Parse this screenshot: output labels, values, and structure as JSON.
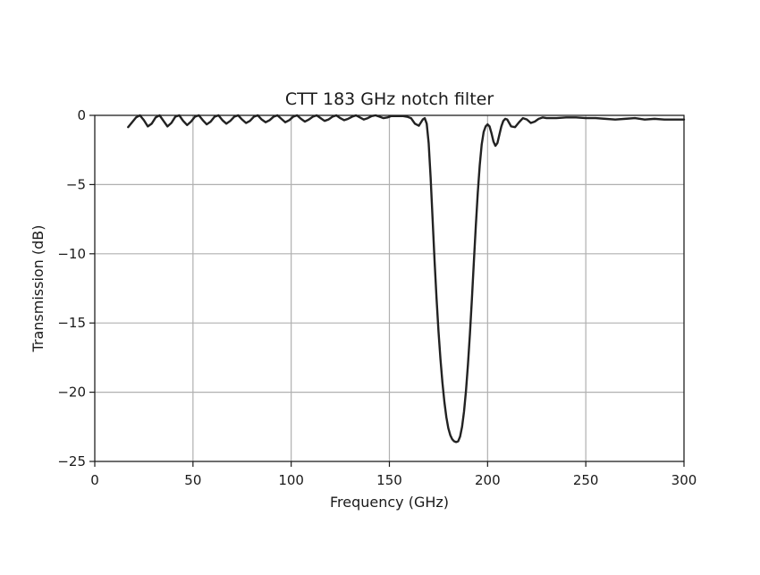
{
  "chart_data": {
    "type": "line",
    "title": "CTT 183 GHz notch filter",
    "xlabel": "Frequency (GHz)",
    "ylabel": "Transmission (dB)",
    "xlim": [
      0,
      300
    ],
    "ylim": [
      -25,
      0
    ],
    "xticks": [
      0,
      50,
      100,
      150,
      200,
      250,
      300
    ],
    "xtick_labels": [
      "0",
      "50",
      "100",
      "150",
      "200",
      "250",
      "300"
    ],
    "yticks": [
      0,
      -5,
      -10,
      -15,
      -20,
      -25
    ],
    "ytick_labels": [
      "0",
      "−5",
      "−10",
      "−15",
      "−20",
      "−25"
    ],
    "grid": true,
    "legend": "none",
    "line_color": "#222222",
    "series": [
      {
        "x": [
          17,
          19,
          21,
          23,
          25,
          27,
          29,
          31,
          33,
          35,
          37,
          39,
          41,
          43,
          45,
          47,
          49,
          51,
          53,
          55,
          57,
          59,
          61,
          63,
          65,
          67,
          69,
          71,
          73,
          75,
          77,
          79,
          81,
          83,
          85,
          87,
          89,
          91,
          93,
          95,
          97,
          99,
          101,
          103,
          105,
          107,
          109,
          111,
          113,
          115,
          117,
          119,
          121,
          123,
          125,
          127,
          129,
          131,
          133,
          135,
          137,
          139,
          141,
          143,
          145,
          147,
          149,
          151,
          153,
          155,
          157,
          159,
          161,
          163,
          165,
          167,
          168,
          169,
          170,
          171,
          172,
          173,
          174,
          175,
          176,
          177,
          178,
          179,
          180,
          181,
          182,
          183,
          184,
          185,
          186,
          187,
          188,
          189,
          190,
          191,
          192,
          193,
          194,
          195,
          196,
          197,
          198,
          199,
          200,
          201,
          202,
          203,
          204,
          205,
          206,
          207,
          208,
          209,
          210,
          212,
          214,
          216,
          218,
          220,
          222,
          224,
          226,
          228,
          230,
          235,
          240,
          245,
          250,
          255,
          260,
          265,
          270,
          275,
          280,
          285,
          290,
          295,
          300
        ],
        "y": [
          -0.85,
          -0.5,
          -0.15,
          0.0,
          -0.35,
          -0.8,
          -0.6,
          -0.15,
          0.0,
          -0.4,
          -0.8,
          -0.55,
          -0.1,
          0.0,
          -0.4,
          -0.7,
          -0.45,
          -0.1,
          0.0,
          -0.35,
          -0.65,
          -0.45,
          -0.1,
          0.0,
          -0.35,
          -0.6,
          -0.4,
          -0.1,
          0.0,
          -0.3,
          -0.55,
          -0.4,
          -0.1,
          0.0,
          -0.3,
          -0.5,
          -0.35,
          -0.1,
          0.0,
          -0.25,
          -0.5,
          -0.35,
          -0.1,
          0.0,
          -0.25,
          -0.45,
          -0.3,
          -0.1,
          0.0,
          -0.2,
          -0.4,
          -0.3,
          -0.1,
          0.0,
          -0.2,
          -0.35,
          -0.25,
          -0.1,
          0.0,
          -0.15,
          -0.3,
          -0.2,
          -0.05,
          0.0,
          -0.1,
          -0.2,
          -0.15,
          -0.05,
          -0.05,
          -0.05,
          -0.05,
          -0.1,
          -0.2,
          -0.6,
          -0.75,
          -0.3,
          -0.2,
          -0.6,
          -2.0,
          -4.5,
          -7.5,
          -10.5,
          -13.2,
          -15.6,
          -17.6,
          -19.3,
          -20.7,
          -21.8,
          -22.6,
          -23.1,
          -23.4,
          -23.55,
          -23.6,
          -23.55,
          -23.2,
          -22.5,
          -21.4,
          -19.9,
          -18.0,
          -15.8,
          -13.3,
          -10.6,
          -8.0,
          -5.6,
          -3.6,
          -2.1,
          -1.2,
          -0.8,
          -0.65,
          -0.8,
          -1.3,
          -1.9,
          -2.2,
          -2.0,
          -1.4,
          -0.8,
          -0.4,
          -0.25,
          -0.3,
          -0.8,
          -0.85,
          -0.5,
          -0.2,
          -0.3,
          -0.55,
          -0.45,
          -0.25,
          -0.15,
          -0.2,
          -0.2,
          -0.15,
          -0.15,
          -0.2,
          -0.2,
          -0.25,
          -0.3,
          -0.25,
          -0.2,
          -0.3,
          -0.25,
          -0.3,
          -0.3,
          -0.3
        ]
      }
    ]
  }
}
